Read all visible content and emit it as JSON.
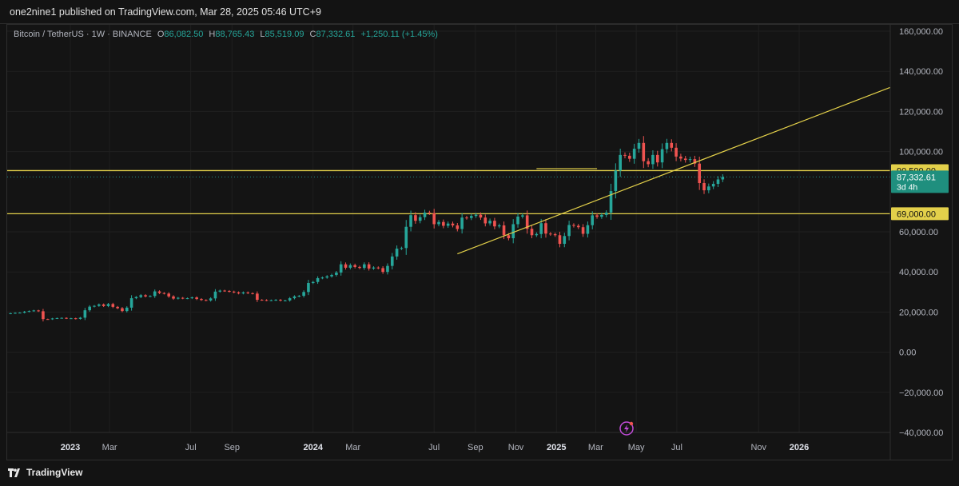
{
  "header": {
    "published_text": "one2nine1 published on TradingView.com, Mar 28, 2025 05:46 UTC+9"
  },
  "legend": {
    "symbol": "Bitcoin / TetherUS · 1W · BINANCE",
    "open_label": "O",
    "open": "86,082.50",
    "high_label": "H",
    "high": "88,765.43",
    "low_label": "L",
    "low": "85,519.09",
    "close_label": "C",
    "close": "87,332.61",
    "change": "+1,250.11 (+1.45%)"
  },
  "footer": {
    "brand": "TradingView",
    "logo_icon": "tradingview-logo-icon"
  },
  "colors": {
    "up": "#26a69a",
    "down": "#ef5350",
    "line": "#e3d04a",
    "background": "#141414",
    "grid": "#1f1f1f",
    "price_tag": "#1f8f7e",
    "axis_text": "#b2b5be"
  },
  "chart_data": {
    "type": "candlestick",
    "y_axis": {
      "ticks": [
        160000,
        140000,
        120000,
        100000,
        60000,
        40000,
        20000,
        0,
        -20000,
        -40000
      ],
      "tick_labels": [
        "160,000.00",
        "140,000.00",
        "120,000.00",
        "100,000.00",
        "60,000.00",
        "40,000.00",
        "20,000.00",
        "0.00",
        "−20,000.00",
        "−40,000.00"
      ],
      "range": [
        -40000,
        160000
      ]
    },
    "x_axis": {
      "labels": [
        {
          "text": "2023",
          "date": "2023-01-01",
          "bold": true
        },
        {
          "text": "Mar",
          "date": "2023-03-01",
          "bold": false
        },
        {
          "text": "Jul",
          "date": "2023-07-01",
          "bold": false
        },
        {
          "text": "Sep",
          "date": "2023-09-01",
          "bold": false
        },
        {
          "text": "2024",
          "date": "2024-01-01",
          "bold": true
        },
        {
          "text": "Mar",
          "date": "2024-03-01",
          "bold": false
        },
        {
          "text": "Jul",
          "date": "2024-07-01",
          "bold": false
        },
        {
          "text": "Sep",
          "date": "2024-09-01",
          "bold": false
        },
        {
          "text": "Nov",
          "date": "2024-11-01",
          "bold": false
        },
        {
          "text": "2025",
          "date": "2025-01-01",
          "bold": true
        },
        {
          "text": "Mar",
          "date": "2025-03-01",
          "bold": false
        },
        {
          "text": "May",
          "date": "2025-05-01",
          "bold": false
        },
        {
          "text": "Jul",
          "date": "2025-07-01",
          "bold": false
        },
        {
          "text": "Nov",
          "date": "2025-11-01",
          "bold": false
        },
        {
          "text": "2026",
          "date": "2026-01-01",
          "bold": true
        }
      ],
      "range": [
        "2022-09-28",
        "2026-05-18"
      ]
    },
    "start_week": "2022-10-03",
    "closes": [
      19400,
      19600,
      19700,
      20200,
      20500,
      20800,
      20400,
      16500,
      16400,
      16800,
      17000,
      17100,
      16800,
      16900,
      16600,
      17200,
      20900,
      22700,
      23100,
      23800,
      23000,
      24000,
      22600,
      21900,
      20500,
      22200,
      26900,
      27500,
      28400,
      27800,
      28000,
      30300,
      29500,
      29200,
      27800,
      26700,
      27100,
      26800,
      26900,
      27300,
      26500,
      26000,
      25800,
      26800,
      30200,
      30700,
      30500,
      30200,
      29800,
      29300,
      29800,
      29400,
      29200,
      26100,
      26000,
      25800,
      25900,
      26100,
      25700,
      25800,
      26900,
      27800,
      28100,
      30000,
      34500,
      35000,
      36900,
      37200,
      37800,
      38500,
      39700,
      43800,
      42100,
      43400,
      42500,
      42000,
      43800,
      41700,
      42200,
      41900,
      40000,
      43000,
      47700,
      51600,
      51900,
      62500,
      68300,
      65500,
      67300,
      69600,
      69300,
      63800,
      64900,
      63000,
      64100,
      63200,
      61400,
      67100,
      66900,
      67900,
      68500,
      67100,
      64200,
      65500,
      62700,
      63200,
      58300,
      56800,
      63800,
      67600,
      68200,
      61500,
      58300,
      58900,
      64300,
      59100,
      58800,
      58300,
      54000,
      57900,
      63400,
      63000,
      62300,
      59000,
      63300,
      68200,
      67500,
      68400,
      69600,
      80300,
      90500,
      98300,
      97900,
      96400,
      101400,
      104300,
      95200,
      93700,
      98300,
      94600,
      101200,
      104300,
      101900,
      97500,
      96500,
      95800,
      96200,
      94000,
      84300,
      80700,
      82600,
      83900,
      86100,
      87333
    ],
    "trend_line": {
      "from": {
        "date": "2024-08-05",
        "price": 49000
      },
      "to": {
        "date": "2026-05-18",
        "price": 132000
      }
    },
    "top_segment": {
      "from": {
        "date": "2024-12-02",
        "price": 91500
      },
      "to": {
        "date": "2025-03-03",
        "price": 91500
      }
    },
    "horizontal_levels": [
      {
        "price": 90500,
        "label": "90,500.00"
      },
      {
        "price": 69000,
        "label": "69,000.00"
      }
    ],
    "last_price": {
      "price": 87332.61,
      "label": "87,332.61",
      "countdown": "3d 4h"
    },
    "grid": true
  },
  "icons": {
    "event_marker": "lightning-event-icon"
  }
}
